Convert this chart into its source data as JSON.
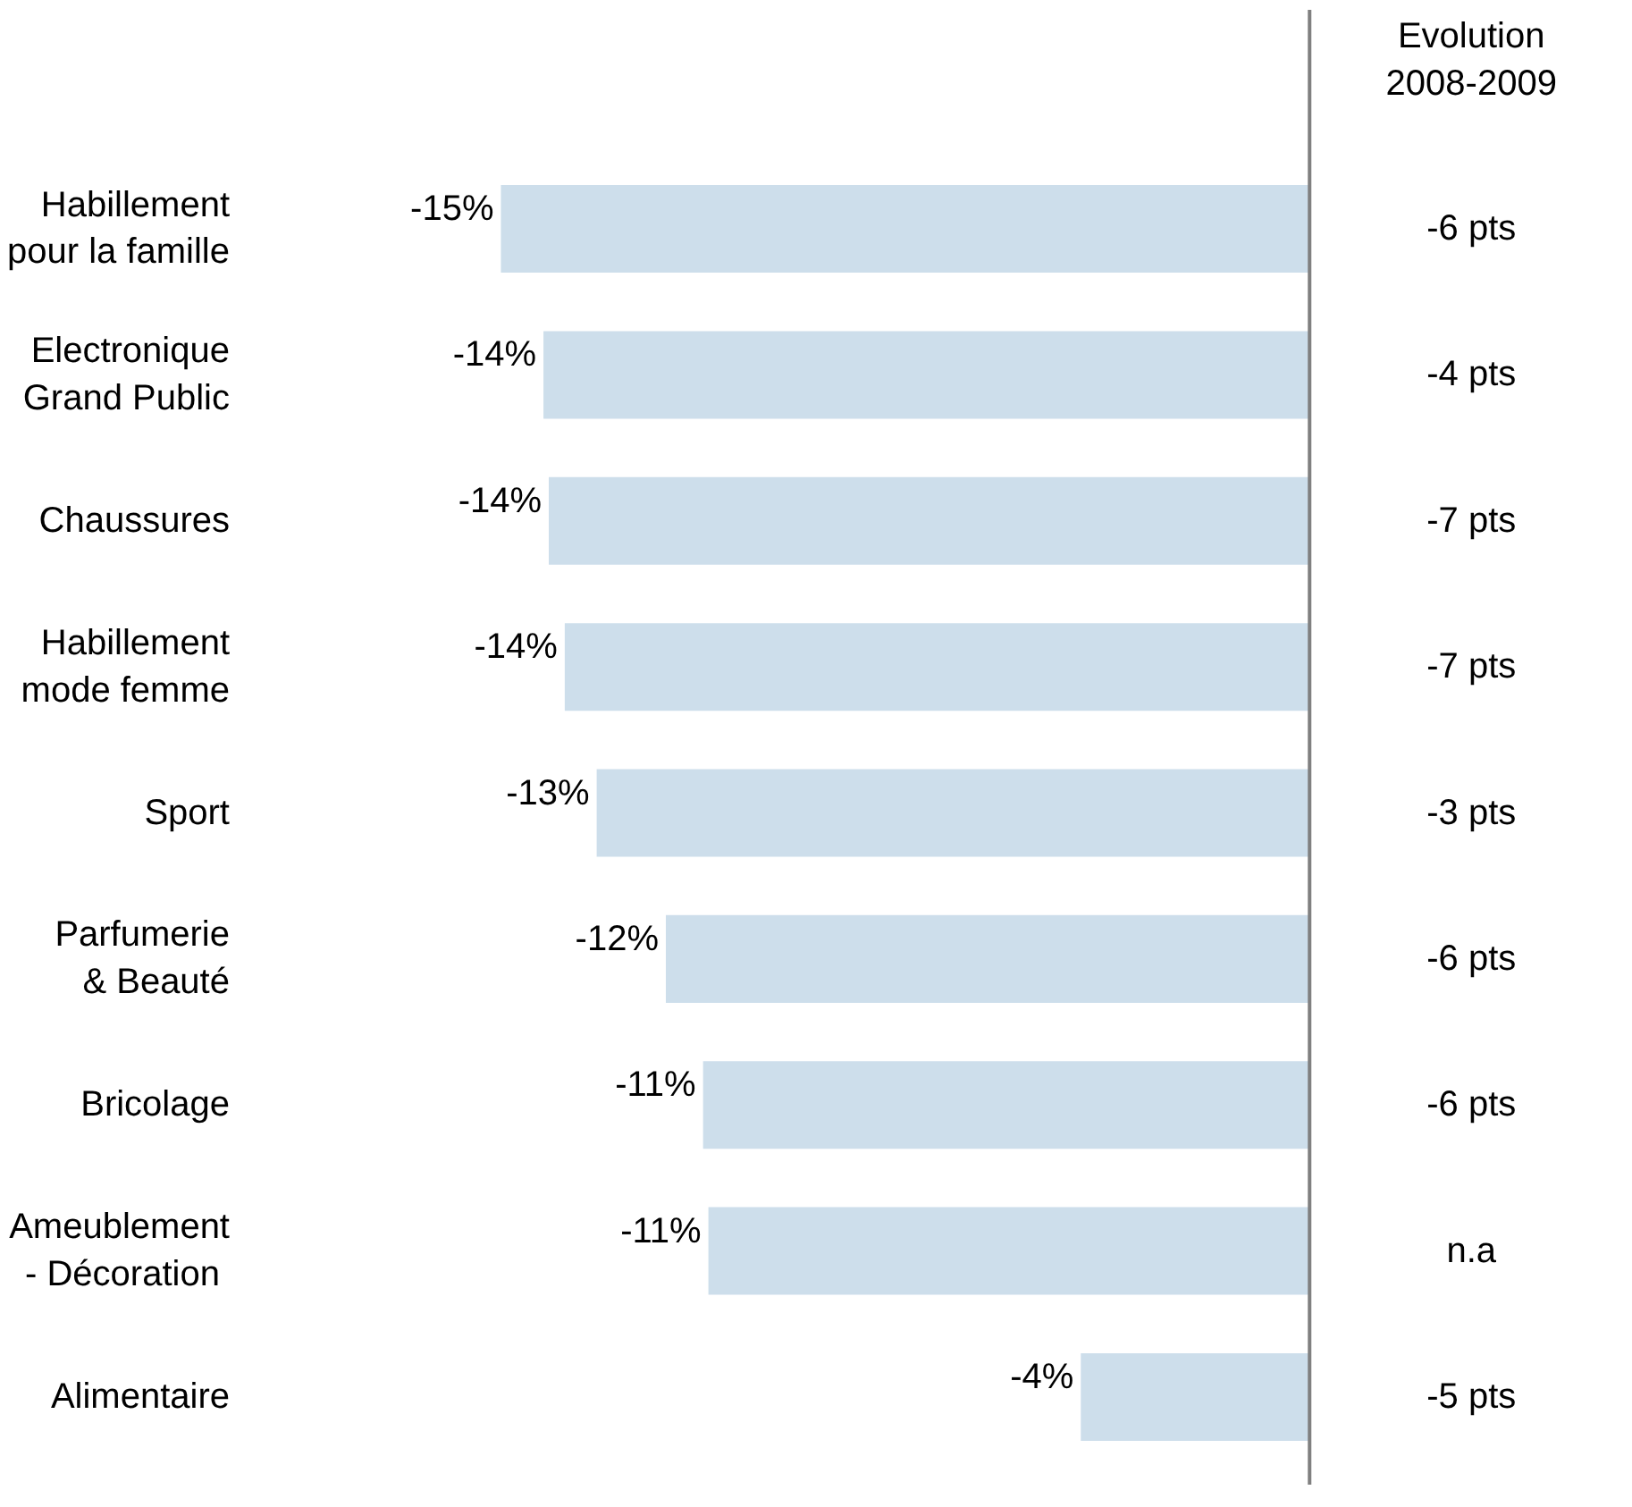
{
  "chart_data": {
    "type": "bar",
    "orientation": "horizontal",
    "color": "#cddeeb",
    "categories": [
      "Habillement\npour la famille",
      "Electronique\nGrand Public",
      "Chaussures",
      "Habillement\nmode femme",
      "Sport",
      "Parfumerie\n& Beauté",
      "Bricolage",
      "Ameublement\n - Décoration",
      "Alimentaire"
    ],
    "values": [
      -15.2,
      -14.4,
      -14.3,
      -14.0,
      -13.4,
      -12.1,
      -11.4,
      -11.3,
      -4.3
    ],
    "value_labels": [
      "-15%",
      "-14%",
      "-14%",
      "-14%",
      "-13%",
      "-12%",
      "-11%",
      "-11%",
      "-4%"
    ],
    "annotations": [
      "Evolution\n2008-2009",
      "-6 pts",
      "-4 pts",
      "-7 pts",
      "-7 pts",
      "-3 pts",
      "-6 pts",
      "-6 pts",
      "n.a",
      "-5 pts"
    ],
    "grid": false
  }
}
